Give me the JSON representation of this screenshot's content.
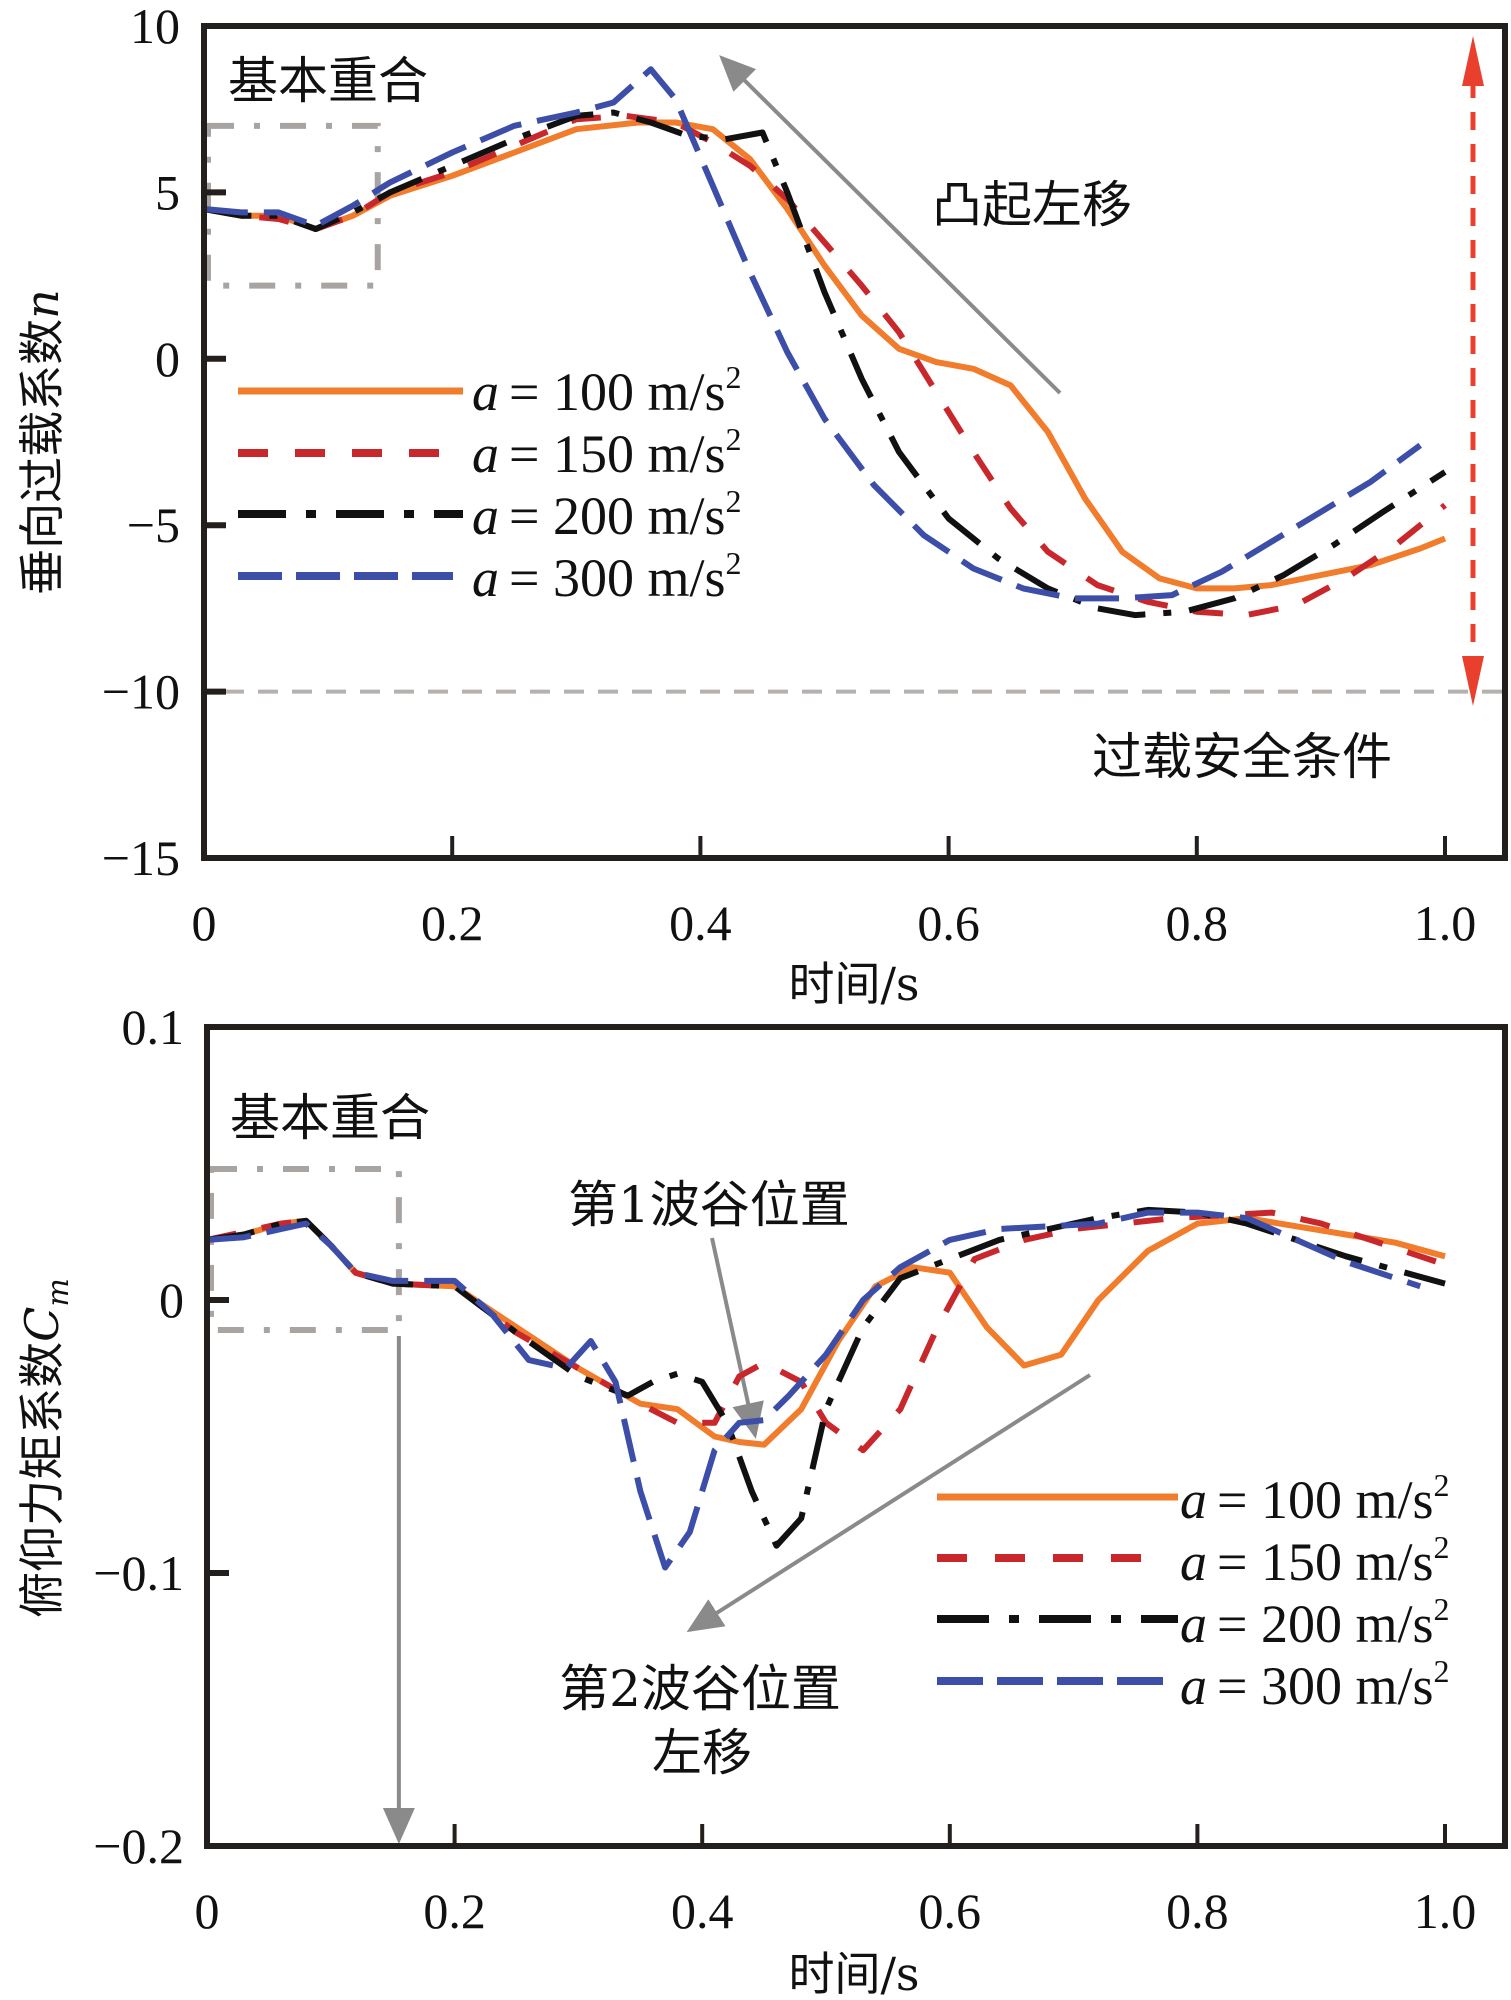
{
  "chart_data": [
    {
      "type": "line",
      "id": "overload",
      "title": "",
      "xlabel": "时间/s",
      "ylabel": "垂向过载系数",
      "ylabel_symbol": "n",
      "xlim": [
        0,
        1.0
      ],
      "ylim": [
        -15,
        10
      ],
      "xticks": [
        0,
        0.2,
        0.4,
        0.6,
        0.8,
        1.0
      ],
      "xtick_labels": [
        "0",
        "0.2",
        "0.4",
        "0.6",
        "0.8",
        "1.0"
      ],
      "yticks": [
        10,
        5,
        0,
        -5,
        -10,
        -15
      ],
      "ytick_labels": [
        "10",
        "5",
        "0",
        "−5",
        "−10",
        "−15"
      ],
      "grid": false,
      "legend_position": "center-left",
      "annotations": {
        "overlap_label": "基本重合",
        "bump_label": "凸起左移",
        "safety_label": "过载安全条件",
        "safety_line_value": -10,
        "overlap_box": {
          "t": [
            0,
            0.14
          ],
          "v": [
            2.2,
            7.0
          ]
        }
      },
      "series": [
        {
          "name": "a = 100 m/s²",
          "legend_prefix": "a",
          "legend_value": "= 100 m/s",
          "legend_sup": "2",
          "color": "#f07c2c",
          "style": "solid",
          "x": [
            0,
            0.03,
            0.06,
            0.09,
            0.12,
            0.15,
            0.2,
            0.25,
            0.3,
            0.35,
            0.38,
            0.41,
            0.44,
            0.47,
            0.5,
            0.53,
            0.56,
            0.59,
            0.62,
            0.65,
            0.68,
            0.71,
            0.74,
            0.77,
            0.8,
            0.83,
            0.86,
            0.9,
            0.94,
            0.98,
            1.0
          ],
          "y": [
            4.5,
            4.3,
            4.3,
            3.9,
            4.3,
            4.9,
            5.5,
            6.2,
            6.9,
            7.1,
            7.1,
            6.9,
            6.0,
            4.5,
            2.8,
            1.3,
            0.3,
            -0.1,
            -0.3,
            -0.8,
            -2.2,
            -4.2,
            -5.8,
            -6.6,
            -6.9,
            -6.9,
            -6.8,
            -6.5,
            -6.2,
            -5.7,
            -5.4
          ]
        },
        {
          "name": "a = 150 m/s²",
          "legend_prefix": "a",
          "legend_value": "= 150 m/s",
          "legend_sup": "2",
          "color": "#c8282c",
          "style": "dashed",
          "x": [
            0,
            0.03,
            0.06,
            0.09,
            0.12,
            0.15,
            0.2,
            0.25,
            0.3,
            0.34,
            0.38,
            0.41,
            0.44,
            0.47,
            0.5,
            0.53,
            0.56,
            0.59,
            0.62,
            0.65,
            0.68,
            0.72,
            0.76,
            0.8,
            0.84,
            0.88,
            0.92,
            0.96,
            1.0
          ],
          "y": [
            4.5,
            4.3,
            4.2,
            3.9,
            4.3,
            5.0,
            5.6,
            6.4,
            7.2,
            7.3,
            7.1,
            6.5,
            5.8,
            4.8,
            3.5,
            2.2,
            0.8,
            -1.0,
            -2.8,
            -4.5,
            -5.8,
            -6.8,
            -7.3,
            -7.6,
            -7.7,
            -7.4,
            -6.6,
            -5.6,
            -4.4
          ]
        },
        {
          "name": "a = 200 m/s²",
          "legend_prefix": "a",
          "legend_value": "= 200 m/s",
          "legend_sup": "2",
          "color": "#111111",
          "style": "dashdot",
          "x": [
            0,
            0.03,
            0.06,
            0.09,
            0.12,
            0.15,
            0.2,
            0.25,
            0.3,
            0.33,
            0.36,
            0.39,
            0.42,
            0.45,
            0.47,
            0.5,
            0.53,
            0.56,
            0.6,
            0.64,
            0.68,
            0.72,
            0.75,
            0.79,
            0.83,
            0.87,
            0.91,
            0.95,
            1.0
          ],
          "y": [
            4.5,
            4.3,
            4.3,
            3.9,
            4.4,
            5.0,
            5.8,
            6.6,
            7.3,
            7.4,
            7.1,
            6.7,
            6.6,
            6.8,
            5.0,
            2.0,
            -0.6,
            -2.8,
            -4.8,
            -6.0,
            -6.9,
            -7.5,
            -7.7,
            -7.6,
            -7.2,
            -6.5,
            -5.6,
            -4.6,
            -3.4
          ]
        },
        {
          "name": "a = 300 m/s²",
          "legend_prefix": "a",
          "legend_value": "= 300 m/s",
          "legend_sup": "2",
          "color": "#3c4ea8",
          "style": "dashed-long",
          "x": [
            0,
            0.03,
            0.06,
            0.09,
            0.12,
            0.15,
            0.2,
            0.25,
            0.3,
            0.33,
            0.36,
            0.38,
            0.41,
            0.44,
            0.47,
            0.5,
            0.54,
            0.58,
            0.62,
            0.66,
            0.7,
            0.74,
            0.78,
            0.82,
            0.86,
            0.9,
            0.94,
            0.98
          ],
          "y": [
            4.5,
            4.4,
            4.4,
            4.0,
            4.6,
            5.3,
            6.2,
            7.0,
            7.4,
            7.7,
            8.7,
            7.8,
            5.2,
            2.6,
            0.2,
            -1.8,
            -3.8,
            -5.3,
            -6.3,
            -6.9,
            -7.2,
            -7.2,
            -7.1,
            -6.4,
            -5.5,
            -4.6,
            -3.7,
            -2.6
          ]
        }
      ]
    },
    {
      "type": "line",
      "id": "pitch-moment",
      "title": "",
      "xlabel": "时间/s",
      "ylabel": "俯仰力矩系数",
      "ylabel_symbol": "C",
      "ylabel_subscript": "m",
      "xlim": [
        0,
        1.0
      ],
      "ylim": [
        -0.2,
        0.1
      ],
      "xticks": [
        0,
        0.2,
        0.4,
        0.6,
        0.8,
        1.0
      ],
      "xtick_labels": [
        "0",
        "0.2",
        "0.4",
        "0.6",
        "0.8",
        "1.0"
      ],
      "yticks": [
        0.1,
        0,
        -0.1,
        -0.2
      ],
      "ytick_labels": [
        "0.1",
        "0",
        "−0.1",
        "−0.2"
      ],
      "grid": false,
      "legend_position": "bottom-right",
      "annotations": {
        "overlap_label": "基本重合",
        "trough1_label": "第1波谷位置",
        "trough2_label_line1": "第2波谷位置",
        "trough2_label_line2": "左移",
        "overlap_box": {
          "t": [
            0,
            0.155
          ],
          "v": [
            -0.011,
            0.048
          ]
        }
      },
      "series": [
        {
          "name": "a = 100 m/s²",
          "legend_prefix": "a",
          "legend_value": "= 100 m/s",
          "legend_sup": "2",
          "color": "#f07c2c",
          "style": "solid",
          "x": [
            0,
            0.03,
            0.06,
            0.08,
            0.1,
            0.12,
            0.15,
            0.2,
            0.25,
            0.3,
            0.35,
            0.38,
            0.41,
            0.43,
            0.45,
            0.48,
            0.51,
            0.54,
            0.57,
            0.6,
            0.63,
            0.66,
            0.69,
            0.72,
            0.76,
            0.8,
            0.84,
            0.88,
            0.92,
            0.96,
            1.0
          ],
          "y": [
            0.022,
            0.024,
            0.028,
            0.029,
            0.02,
            0.01,
            0.006,
            0.005,
            -0.01,
            -0.025,
            -0.038,
            -0.04,
            -0.05,
            -0.052,
            -0.053,
            -0.04,
            -0.015,
            0.005,
            0.012,
            0.01,
            -0.01,
            -0.024,
            -0.02,
            0.0,
            0.018,
            0.028,
            0.03,
            0.027,
            0.024,
            0.021,
            0.016
          ]
        },
        {
          "name": "a = 150 m/s²",
          "legend_prefix": "a",
          "legend_value": "= 150 m/s",
          "legend_sup": "2",
          "color": "#c8282c",
          "style": "dashed",
          "x": [
            0,
            0.03,
            0.06,
            0.08,
            0.1,
            0.12,
            0.15,
            0.2,
            0.25,
            0.3,
            0.35,
            0.38,
            0.41,
            0.43,
            0.45,
            0.48,
            0.5,
            0.53,
            0.56,
            0.59,
            0.62,
            0.66,
            0.7,
            0.74,
            0.78,
            0.82,
            0.86,
            0.9,
            0.94,
            0.98,
            1.0
          ],
          "y": [
            0.022,
            0.025,
            0.028,
            0.029,
            0.02,
            0.01,
            0.006,
            0.005,
            -0.012,
            -0.025,
            -0.038,
            -0.045,
            -0.045,
            -0.028,
            -0.023,
            -0.03,
            -0.045,
            -0.055,
            -0.04,
            -0.01,
            0.015,
            0.022,
            0.026,
            0.028,
            0.03,
            0.031,
            0.032,
            0.028,
            0.022,
            0.016,
            0.013
          ]
        },
        {
          "name": "a = 200 m/s²",
          "legend_prefix": "a",
          "legend_value": "= 200 m/s",
          "legend_sup": "2",
          "color": "#111111",
          "style": "dashdot",
          "x": [
            0,
            0.03,
            0.06,
            0.08,
            0.1,
            0.12,
            0.15,
            0.2,
            0.25,
            0.3,
            0.34,
            0.36,
            0.38,
            0.4,
            0.42,
            0.44,
            0.46,
            0.48,
            0.5,
            0.53,
            0.56,
            0.6,
            0.64,
            0.68,
            0.72,
            0.76,
            0.8,
            0.84,
            0.88,
            0.92,
            0.96,
            1.0
          ],
          "y": [
            0.022,
            0.024,
            0.028,
            0.029,
            0.02,
            0.01,
            0.006,
            0.005,
            -0.012,
            -0.028,
            -0.035,
            -0.03,
            -0.027,
            -0.03,
            -0.045,
            -0.07,
            -0.09,
            -0.08,
            -0.04,
            -0.01,
            0.008,
            0.015,
            0.022,
            0.026,
            0.03,
            0.033,
            0.032,
            0.028,
            0.022,
            0.016,
            0.011,
            0.006
          ]
        },
        {
          "name": "a = 300 m/s²",
          "legend_prefix": "a",
          "legend_value": "= 300 m/s",
          "legend_sup": "2",
          "color": "#3c4ea8",
          "style": "dashed-long",
          "x": [
            0,
            0.03,
            0.06,
            0.08,
            0.1,
            0.12,
            0.15,
            0.2,
            0.23,
            0.26,
            0.29,
            0.31,
            0.33,
            0.35,
            0.37,
            0.39,
            0.41,
            0.43,
            0.45,
            0.47,
            0.5,
            0.53,
            0.56,
            0.6,
            0.64,
            0.68,
            0.72,
            0.76,
            0.8,
            0.84,
            0.88,
            0.92,
            0.96,
            0.98
          ],
          "y": [
            0.022,
            0.023,
            0.026,
            0.028,
            0.02,
            0.01,
            0.007,
            0.007,
            -0.005,
            -0.022,
            -0.025,
            -0.015,
            -0.03,
            -0.07,
            -0.098,
            -0.085,
            -0.055,
            -0.045,
            -0.044,
            -0.035,
            -0.02,
            0.0,
            0.012,
            0.022,
            0.026,
            0.027,
            0.028,
            0.032,
            0.032,
            0.03,
            0.022,
            0.014,
            0.008,
            0.005
          ]
        }
      ]
    }
  ]
}
